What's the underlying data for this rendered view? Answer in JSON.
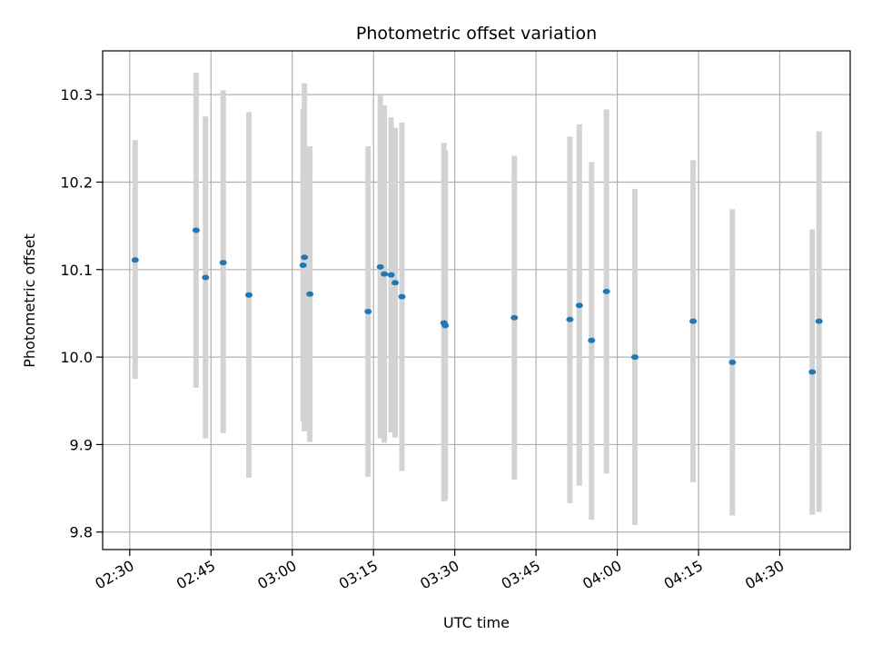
{
  "chart_data": {
    "type": "scatter",
    "title": "Photometric offset variation",
    "xlabel": "UTC time",
    "ylabel": "Photometric offset",
    "x_unit": "UTC time (HH:MM)",
    "xlim": [
      "02:25",
      "04:43"
    ],
    "ylim": [
      9.78,
      10.35
    ],
    "x_ticks": [
      "02:30",
      "02:45",
      "03:00",
      "03:15",
      "03:30",
      "03:45",
      "04:00",
      "04:15",
      "04:30"
    ],
    "y_ticks": [
      "9.8",
      "9.9",
      "10.0",
      "10.1",
      "10.2",
      "10.3"
    ],
    "y_tick_values": [
      9.8,
      9.9,
      10.0,
      10.1,
      10.2,
      10.3
    ],
    "grid": true,
    "point_color": "#1f77b4",
    "errorbar_color": "#d3d3d3",
    "points": [
      {
        "time": "02:31",
        "y": 10.111,
        "lo": 9.975,
        "hi": 10.248
      },
      {
        "time": "02:42",
        "y": 10.145,
        "lo": 9.965,
        "hi": 10.325
      },
      {
        "time": "02:44",
        "y": 10.091,
        "lo": 9.907,
        "hi": 10.275
      },
      {
        "time": "02:47",
        "y": 10.108,
        "lo": 9.913,
        "hi": 10.305
      },
      {
        "time": "02:52",
        "y": 10.071,
        "lo": 9.862,
        "hi": 10.28
      },
      {
        "time": "03:02",
        "y": 10.114,
        "lo": 9.915,
        "hi": 10.313
      },
      {
        "time": "03:02",
        "y": 10.105,
        "lo": 9.927,
        "hi": 10.283
      },
      {
        "time": "03:03",
        "y": 10.072,
        "lo": 9.903,
        "hi": 10.241
      },
      {
        "time": "03:14",
        "y": 10.052,
        "lo": 9.863,
        "hi": 10.241
      },
      {
        "time": "03:16",
        "y": 10.103,
        "lo": 9.907,
        "hi": 10.299
      },
      {
        "time": "03:17",
        "y": 10.095,
        "lo": 9.902,
        "hi": 10.288
      },
      {
        "time": "03:18",
        "y": 10.094,
        "lo": 9.914,
        "hi": 10.274
      },
      {
        "time": "03:19",
        "y": 10.085,
        "lo": 9.908,
        "hi": 10.262
      },
      {
        "time": "03:20",
        "y": 10.069,
        "lo": 9.87,
        "hi": 10.268
      },
      {
        "time": "03:28",
        "y": 10.039,
        "lo": 9.835,
        "hi": 10.245
      },
      {
        "time": "03:28",
        "y": 10.036,
        "lo": 9.836,
        "hi": 10.236
      },
      {
        "time": "03:41",
        "y": 10.045,
        "lo": 9.86,
        "hi": 10.23
      },
      {
        "time": "03:51",
        "y": 10.043,
        "lo": 9.833,
        "hi": 10.252
      },
      {
        "time": "03:53",
        "y": 10.059,
        "lo": 9.853,
        "hi": 10.266
      },
      {
        "time": "03:55",
        "y": 10.019,
        "lo": 9.814,
        "hi": 10.223
      },
      {
        "time": "03:58",
        "y": 10.075,
        "lo": 9.867,
        "hi": 10.283
      },
      {
        "time": "04:03",
        "y": 10.0,
        "lo": 9.808,
        "hi": 10.192
      },
      {
        "time": "04:14",
        "y": 10.041,
        "lo": 9.857,
        "hi": 10.225
      },
      {
        "time": "04:21",
        "y": 9.994,
        "lo": 9.819,
        "hi": 10.169
      },
      {
        "time": "04:36",
        "y": 9.983,
        "lo": 9.82,
        "hi": 10.146
      },
      {
        "time": "04:37",
        "y": 10.041,
        "lo": 9.823,
        "hi": 10.258
      }
    ]
  }
}
